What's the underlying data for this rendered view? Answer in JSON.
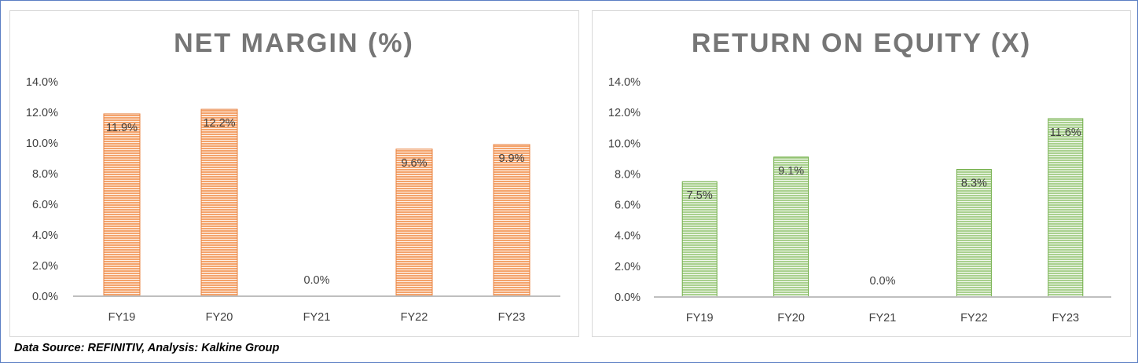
{
  "chart_data": [
    {
      "type": "bar",
      "title": "NET MARGIN (%)",
      "categories": [
        "FY19",
        "FY20",
        "FY21",
        "FY22",
        "FY23"
      ],
      "values": [
        11.9,
        12.2,
        0.0,
        9.6,
        9.9
      ],
      "data_labels": [
        "11.9%",
        "12.2%",
        "0.0%",
        "9.6%",
        "9.9%"
      ],
      "yticks": [
        "0.0%",
        "2.0%",
        "4.0%",
        "6.0%",
        "8.0%",
        "10.0%",
        "12.0%",
        "14.0%"
      ],
      "ylim": [
        0,
        14
      ],
      "grid": false,
      "bar_color": "#f4a36b",
      "bar_stroke": "#e8803d"
    },
    {
      "type": "bar",
      "title": "RETURN ON EQUITY (X)",
      "categories": [
        "FY19",
        "FY20",
        "FY21",
        "FY22",
        "FY23"
      ],
      "values": [
        7.5,
        9.1,
        0.0,
        8.3,
        11.6
      ],
      "data_labels": [
        "7.5%",
        "9.1%",
        "0.0%",
        "8.3%",
        "11.6%"
      ],
      "yticks": [
        "0.0%",
        "2.0%",
        "4.0%",
        "6.0%",
        "8.0%",
        "10.0%",
        "12.0%",
        "14.0%"
      ],
      "ylim": [
        0,
        14
      ],
      "grid": false,
      "bar_color": "#a9d08e",
      "bar_stroke": "#70ad47"
    }
  ],
  "footer": {
    "source": "Data Source: REFINITIV, Analysis: Kalkine Group"
  }
}
